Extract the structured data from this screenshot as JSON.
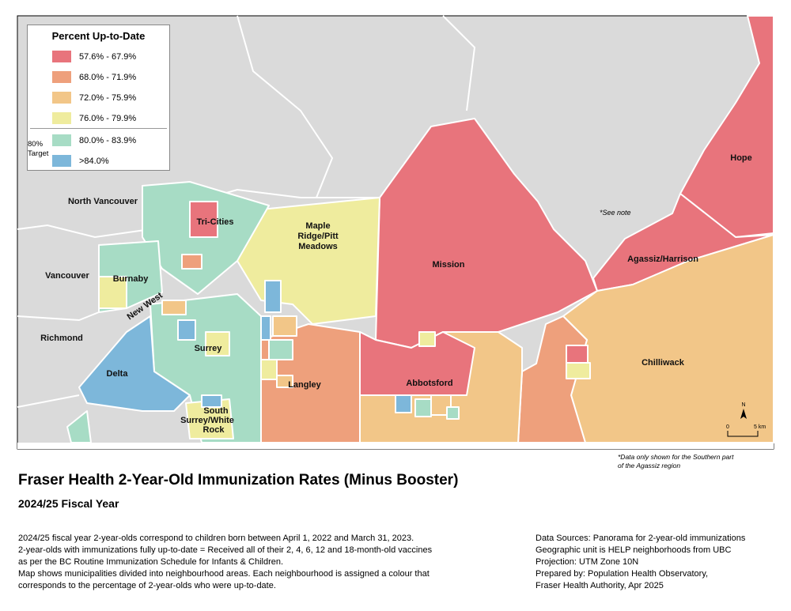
{
  "legend": {
    "title": "Percent Up-to-Date",
    "target_label": "80% Target",
    "items": [
      {
        "label": "57.6% - 67.9%",
        "color": "#e8747c"
      },
      {
        "label": "68.0% - 71.9%",
        "color": "#eea07c"
      },
      {
        "label": "72.0% - 75.9%",
        "color": "#f2c688"
      },
      {
        "label": "76.0% - 79.9%",
        "color": "#efec9e"
      },
      {
        "label": "80.0% - 83.9%",
        "color": "#a7dcc5"
      },
      {
        "label": ">84.0%",
        "color": "#7db7da"
      }
    ]
  },
  "regions": {
    "north_vancouver": "North Vancouver",
    "vancouver": "Vancouver",
    "richmond": "Richmond",
    "burnaby": "Burnaby",
    "new_west": "New West",
    "tri_cities": "Tri-Cities",
    "maple_ridge": "Maple Ridge/Pitt Meadows",
    "mission": "Mission",
    "hope": "Hope",
    "agassiz": "Agassiz/Harrison",
    "chilliwack": "Chilliwack",
    "abbotsford": "Abbotsford",
    "langley": "Langley",
    "surrey": "Surrey",
    "delta": "Delta",
    "white_rock": "South Surrey/White Rock",
    "see_note": "*See note"
  },
  "scale": {
    "zero": "0",
    "max": "5 km",
    "north": "N"
  },
  "map_note": "*Data only shown for the Southern part of the Agassiz region",
  "title": "Fraser Health 2-Year-Old Immunization Rates (Minus Booster)",
  "subtitle": "2024/25 Fiscal Year",
  "description": [
    "2024/25 fiscal year 2-year-olds correspond to children born between April 1, 2022 and March 31, 2023.",
    "2-year-olds with immunizations fully up-to-date = Received all of their 2, 4, 6, 12 and 18-month-old vaccines",
    "as per the BC Routine Immunization Schedule for Infants & Children.",
    "Map shows municipalities divided into neighbourhood areas. Each neighbourhood is assigned a colour that",
    "corresponds to the percentage of 2-year-olds who were up-to-date."
  ],
  "sources": [
    "Data Sources: Panorama for 2-year-old immunizations",
    "Geographic unit is HELP neighborhoods from UBC",
    "Projection: UTM Zone 10N",
    "Prepared by: Population Health Observatory,",
    "Fraser Health Authority, Apr 2025"
  ]
}
